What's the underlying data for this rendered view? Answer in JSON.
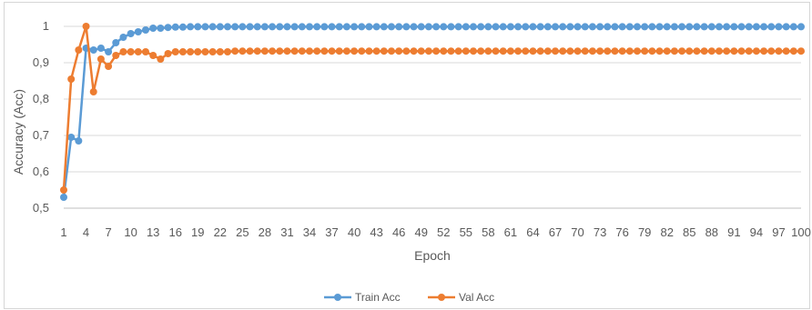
{
  "chart_data": {
    "type": "line",
    "title": "",
    "xlabel": "Epoch",
    "ylabel": "Accuracy (Acc)",
    "ylim": [
      0.5,
      1
    ],
    "yticks": [
      "0,5",
      "0,6",
      "0,7",
      "0,8",
      "0,9",
      "1"
    ],
    "yticks_values": [
      0.5,
      0.6,
      0.7,
      0.8,
      0.9,
      1.0
    ],
    "xticks": [
      "1",
      "4",
      "7",
      "10",
      "13",
      "16",
      "19",
      "22",
      "25",
      "28",
      "31",
      "34",
      "37",
      "40",
      "43",
      "46",
      "49",
      "52",
      "55",
      "58",
      "61",
      "64",
      "67",
      "70",
      "73",
      "76",
      "79",
      "82",
      "85",
      "88",
      "91",
      "94",
      "97",
      "100"
    ],
    "x_range": [
      1,
      100
    ],
    "grid": "horizontal",
    "legend_position": "bottom",
    "series": [
      {
        "name": "Train Acc",
        "color": "#5B9BD5",
        "values": [
          0.53,
          0.695,
          0.685,
          0.94,
          0.935,
          0.94,
          0.93,
          0.955,
          0.97,
          0.98,
          0.985,
          0.99,
          0.995,
          0.995,
          0.997,
          0.998,
          0.998,
          0.999,
          0.999,
          0.999,
          0.999,
          0.999,
          0.999,
          0.999,
          0.999,
          0.999,
          0.999,
          0.999,
          0.999,
          0.999,
          0.999,
          0.999,
          0.999,
          0.999,
          0.999,
          0.999,
          0.999,
          0.999,
          0.999,
          0.999,
          0.999,
          0.999,
          0.999,
          0.999,
          0.999,
          0.999,
          0.999,
          0.999,
          0.999,
          0.999,
          0.999,
          0.999,
          0.999,
          0.999,
          0.999,
          0.999,
          0.999,
          0.999,
          0.999,
          0.999,
          0.999,
          0.999,
          0.999,
          0.999,
          0.999,
          0.999,
          0.999,
          0.999,
          0.999,
          0.999,
          0.999,
          0.999,
          0.999,
          0.999,
          0.999,
          0.999,
          0.999,
          0.999,
          0.999,
          0.999,
          0.999,
          0.999,
          0.999,
          0.999,
          0.999,
          0.999,
          0.999,
          0.999,
          0.999,
          0.999,
          0.999,
          0.999,
          0.999,
          0.999,
          0.999,
          0.999,
          0.999,
          0.999,
          0.999,
          0.999
        ]
      },
      {
        "name": "Val Acc",
        "color": "#ED7D31",
        "values": [
          0.55,
          0.855,
          0.935,
          1.0,
          0.82,
          0.91,
          0.89,
          0.92,
          0.93,
          0.93,
          0.93,
          0.93,
          0.92,
          0.91,
          0.925,
          0.93,
          0.93,
          0.93,
          0.93,
          0.93,
          0.93,
          0.93,
          0.93,
          0.932,
          0.932,
          0.932,
          0.932,
          0.932,
          0.932,
          0.932,
          0.932,
          0.932,
          0.932,
          0.932,
          0.932,
          0.932,
          0.932,
          0.932,
          0.932,
          0.932,
          0.932,
          0.932,
          0.932,
          0.932,
          0.932,
          0.932,
          0.932,
          0.932,
          0.932,
          0.932,
          0.932,
          0.932,
          0.932,
          0.932,
          0.932,
          0.932,
          0.932,
          0.932,
          0.932,
          0.932,
          0.932,
          0.932,
          0.932,
          0.932,
          0.932,
          0.932,
          0.932,
          0.932,
          0.932,
          0.932,
          0.932,
          0.932,
          0.932,
          0.932,
          0.932,
          0.932,
          0.932,
          0.932,
          0.932,
          0.932,
          0.932,
          0.932,
          0.932,
          0.932,
          0.932,
          0.932,
          0.932,
          0.932,
          0.932,
          0.932,
          0.932,
          0.932,
          0.932,
          0.932,
          0.932,
          0.932,
          0.932,
          0.932,
          0.932,
          0.932
        ]
      }
    ]
  }
}
